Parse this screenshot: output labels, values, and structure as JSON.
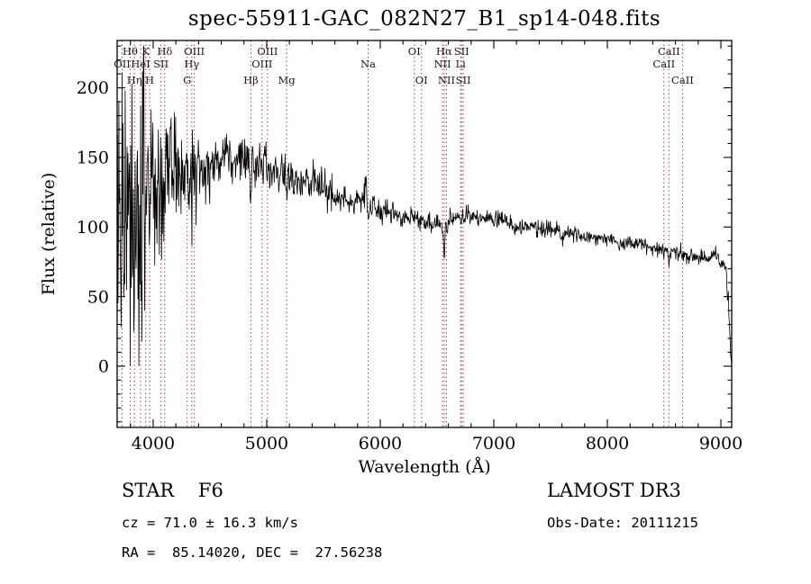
{
  "window": {
    "background": "#ffffff"
  },
  "chart_data": {
    "type": "line",
    "title": "spec-55911-GAC_082N27_B1_sp14-048.fits",
    "xlabel": "Wavelength (Å)",
    "ylabel": "Flux (relative)",
    "xlim": [
      3683,
      9095
    ],
    "ylim": [
      -44,
      234
    ],
    "xticks": [
      4000,
      5000,
      6000,
      7000,
      8000,
      9000
    ],
    "yticks": [
      0,
      50,
      100,
      150,
      200
    ],
    "x_minor_step": 200,
    "y_minor_step": 10,
    "grid": false,
    "series_color": "#000000",
    "line_marker_color": "#a04343",
    "label_color": "#1a1a1a",
    "spectral_lines": [
      {
        "name": "OII",
        "wavelength": 3727,
        "row": 2
      },
      {
        "name": "Hθ",
        "wavelength": 3798,
        "row": 1
      },
      {
        "name": "Hη",
        "wavelength": 3835,
        "row": 3
      },
      {
        "name": "HeI",
        "wavelength": 3889,
        "row": 2
      },
      {
        "name": "K",
        "wavelength": 3934,
        "row": 1
      },
      {
        "name": "H",
        "wavelength": 3969,
        "row": 3
      },
      {
        "name": "SII",
        "wavelength": 4069,
        "row": 2
      },
      {
        "name": "Hδ",
        "wavelength": 4102,
        "row": 1
      },
      {
        "name": "G",
        "wavelength": 4300,
        "row": 3
      },
      {
        "name": "Hγ",
        "wavelength": 4340,
        "row": 2
      },
      {
        "name": "OIII",
        "wavelength": 4363,
        "row": 1
      },
      {
        "name": "Hβ",
        "wavelength": 4861,
        "row": 3
      },
      {
        "name": "OIII",
        "wavelength": 4959,
        "row": 2
      },
      {
        "name": "OIII",
        "wavelength": 5007,
        "row": 1
      },
      {
        "name": "Mg",
        "wavelength": 5175,
        "row": 3
      },
      {
        "name": "Na",
        "wavelength": 5893,
        "row": 2
      },
      {
        "name": "OI",
        "wavelength": 6300,
        "row": 1
      },
      {
        "name": "OI",
        "wavelength": 6363,
        "row": 3
      },
      {
        "name": "NII",
        "wavelength": 6548,
        "row": 2
      },
      {
        "name": "Hα",
        "wavelength": 6563,
        "row": 1
      },
      {
        "name": "NII",
        "wavelength": 6583,
        "row": 3
      },
      {
        "name": "Li",
        "wavelength": 6708,
        "row": 2
      },
      {
        "name": "SII",
        "wavelength": 6716,
        "row": 1
      },
      {
        "name": "SII",
        "wavelength": 6731,
        "row": 3
      },
      {
        "name": "CaII",
        "wavelength": 8498,
        "row": 2
      },
      {
        "name": "CaII",
        "wavelength": 8542,
        "row": 1
      },
      {
        "name": "CaII",
        "wavelength": 8662,
        "row": 3
      }
    ],
    "continuum": [
      [
        3683,
        100
      ],
      [
        3750,
        118
      ],
      [
        3850,
        126
      ],
      [
        3950,
        130
      ],
      [
        4050,
        134
      ],
      [
        4150,
        137
      ],
      [
        4250,
        139
      ],
      [
        4350,
        141
      ],
      [
        4450,
        143
      ],
      [
        4550,
        146
      ],
      [
        4650,
        149
      ],
      [
        4750,
        150
      ],
      [
        4850,
        148
      ],
      [
        4950,
        144
      ],
      [
        5050,
        141
      ],
      [
        5150,
        138
      ],
      [
        5250,
        135
      ],
      [
        5350,
        132
      ],
      [
        5450,
        128
      ],
      [
        5550,
        124
      ],
      [
        5650,
        120
      ],
      [
        5750,
        118
      ],
      [
        5850,
        120
      ],
      [
        5900,
        116
      ],
      [
        6000,
        112
      ],
      [
        6100,
        110
      ],
      [
        6200,
        108
      ],
      [
        6300,
        105
      ],
      [
        6400,
        104
      ],
      [
        6500,
        102
      ],
      [
        6600,
        104
      ],
      [
        6700,
        107
      ],
      [
        6800,
        108
      ],
      [
        6900,
        107
      ],
      [
        7000,
        105
      ],
      [
        7100,
        104
      ],
      [
        7200,
        102
      ],
      [
        7300,
        101
      ],
      [
        7400,
        99
      ],
      [
        7500,
        98
      ],
      [
        7600,
        96
      ],
      [
        7700,
        95
      ],
      [
        7800,
        93
      ],
      [
        7900,
        92
      ],
      [
        8000,
        91
      ],
      [
        8100,
        89
      ],
      [
        8200,
        88
      ],
      [
        8300,
        87
      ],
      [
        8400,
        85
      ],
      [
        8500,
        84
      ],
      [
        8600,
        82
      ],
      [
        8700,
        80
      ],
      [
        8800,
        78
      ],
      [
        8900,
        77
      ],
      [
        8960,
        80
      ],
      [
        9000,
        75
      ],
      [
        9040,
        72
      ],
      [
        9070,
        40
      ],
      [
        9085,
        10
      ],
      [
        9095,
        0
      ]
    ],
    "absorption_dips": [
      {
        "center": 3798,
        "depth": 10,
        "sigma": 4
      },
      {
        "center": 3835,
        "depth": 12,
        "sigma": 4
      },
      {
        "center": 3889,
        "depth": 12,
        "sigma": 4
      },
      {
        "center": 3934,
        "depth": 35,
        "sigma": 6
      },
      {
        "center": 3969,
        "depth": 30,
        "sigma": 6
      },
      {
        "center": 4102,
        "depth": 32,
        "sigma": 5
      },
      {
        "center": 4340,
        "depth": 30,
        "sigma": 5
      },
      {
        "center": 4861,
        "depth": 32,
        "sigma": 5
      },
      {
        "center": 5175,
        "depth": 8,
        "sigma": 9
      },
      {
        "center": 5893,
        "depth": 10,
        "sigma": 6
      },
      {
        "center": 6563,
        "depth": 26,
        "sigma": 6
      },
      {
        "center": 7186,
        "depth": 4,
        "sigma": 10
      },
      {
        "center": 7605,
        "depth": 6,
        "sigma": 8
      },
      {
        "center": 8498,
        "depth": 5,
        "sigma": 4
      },
      {
        "center": 8542,
        "depth": 8,
        "sigma": 5
      },
      {
        "center": 8662,
        "depth": 6,
        "sigma": 5
      }
    ],
    "emission_spikes": [
      {
        "center": 5875,
        "height": 22,
        "sigma": 4
      }
    ],
    "noise_segments": [
      [
        3683,
        3950,
        50
      ],
      [
        3950,
        4200,
        30
      ],
      [
        4200,
        4500,
        16
      ],
      [
        4500,
        5000,
        9
      ],
      [
        5000,
        5600,
        7
      ],
      [
        5600,
        6000,
        5
      ],
      [
        6000,
        6600,
        4
      ],
      [
        6600,
        7600,
        3
      ],
      [
        7600,
        8600,
        2.5
      ],
      [
        8600,
        9095,
        3
      ]
    ],
    "flux_clamp": [
      0,
      231
    ]
  },
  "footer": {
    "classification": "STAR    F6",
    "velocity": "cz = 71.0 ± 16.3 km/s",
    "coordinates": "RA =  85.14020, DEC =  27.56238",
    "survey": "LAMOST DR3",
    "obs_date": "Obs-Date: 20111215"
  }
}
